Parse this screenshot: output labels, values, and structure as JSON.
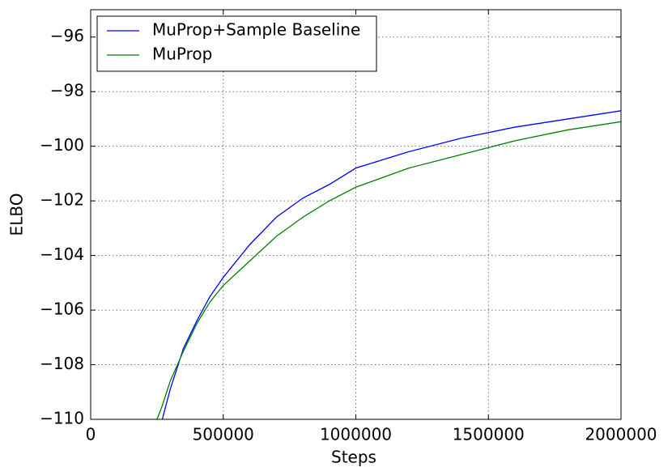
{
  "chart_data": {
    "type": "line",
    "x_label": "Steps",
    "y_label": "ELBO",
    "x": [
      250000,
      270000,
      300000,
      350000,
      400000,
      450000,
      500000,
      600000,
      700000,
      800000,
      900000,
      1000000,
      1200000,
      1400000,
      1600000,
      1800000,
      2000000
    ],
    "series": [
      {
        "name": "MuProp+Sample Baseline",
        "color": "#0000ff",
        "values": [
          null,
          -110,
          -108.9,
          -107.4,
          -106.4,
          -105.5,
          -104.8,
          -103.6,
          -102.6,
          -101.9,
          -101.4,
          -100.8,
          -100.2,
          -99.7,
          -99.3,
          -99.0,
          -98.7
        ]
      },
      {
        "name": "MuProp",
        "color": "#008000",
        "values": [
          -110,
          -109.5,
          -108.6,
          -107.5,
          -106.5,
          -105.7,
          -105.1,
          -104.2,
          -103.3,
          -102.6,
          -102.0,
          -101.5,
          -100.8,
          -100.3,
          -99.8,
          -99.4,
          -99.1
        ]
      }
    ],
    "xlim": [
      0,
      2000000
    ],
    "xticks": [
      0,
      500000,
      1000000,
      1500000,
      2000000
    ],
    "ylim": [
      -110,
      -95
    ],
    "yticks": [
      {
        "value": -110,
        "label": "−110"
      },
      {
        "value": -108,
        "label": "−108"
      },
      {
        "value": -106,
        "label": "−106"
      },
      {
        "value": -104,
        "label": "−104"
      },
      {
        "value": -102,
        "label": "−102"
      },
      {
        "value": -100,
        "label": "−100"
      },
      {
        "value": -98,
        "label": "−98"
      },
      {
        "value": -96,
        "label": "−96"
      }
    ],
    "grid": true,
    "legend": "upper left"
  }
}
